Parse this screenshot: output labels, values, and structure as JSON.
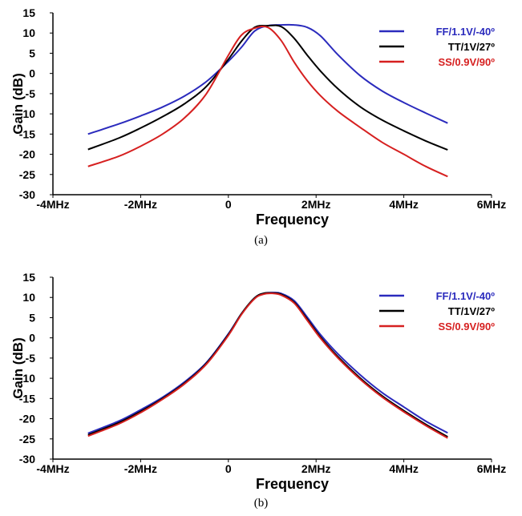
{
  "chart_data": [
    {
      "type": "line",
      "panel": "a",
      "caption": "(a)",
      "xlabel": "Frequency",
      "ylabel": "Gain (dB)",
      "xlim": [
        -4,
        6
      ],
      "ylim": [
        -30,
        15
      ],
      "x_tick_labels": [
        "-4MHz",
        "-2MHz",
        "0",
        "2MHz",
        "4MHz",
        "6MHz"
      ],
      "y_tick_labels": [
        "15",
        "10",
        "5",
        "0",
        "-5",
        "-10",
        "-15",
        "-20",
        "-25",
        "-30"
      ],
      "legend_position": "top-right",
      "series": [
        {
          "name": "FF/1.1V/-40º",
          "color": "#2b2bbd",
          "x": [
            -3.2,
            -2.5,
            -2.0,
            -1.5,
            -1.0,
            -0.5,
            0.0,
            0.3,
            0.6,
            0.9,
            1.2,
            1.5,
            1.8,
            2.1,
            2.5,
            3.0,
            3.5,
            4.0,
            4.5,
            5.0
          ],
          "y": [
            -15,
            -12.5,
            -10.5,
            -8.3,
            -5.6,
            -2,
            3,
            6.5,
            10.5,
            11.8,
            12,
            12,
            11.4,
            9.3,
            4.6,
            -0.5,
            -4.3,
            -7.2,
            -9.8,
            -12.3
          ]
        },
        {
          "name": "TT/1V/27º",
          "color": "#000000",
          "x": [
            -3.2,
            -2.5,
            -2.0,
            -1.5,
            -1.0,
            -0.5,
            0.0,
            0.3,
            0.6,
            0.9,
            1.2,
            1.5,
            1.8,
            2.1,
            2.5,
            3.0,
            3.5,
            4.0,
            4.5,
            5.0
          ],
          "y": [
            -18.8,
            -16,
            -13.5,
            -10.7,
            -7.5,
            -3.2,
            3.5,
            8,
            11.4,
            11.8,
            11.6,
            8.7,
            4.5,
            0.6,
            -3.8,
            -8.2,
            -11.5,
            -14.2,
            -16.7,
            -18.9
          ]
        },
        {
          "name": "SS/0.9V/90º",
          "color": "#d62020",
          "x": [
            -3.2,
            -2.5,
            -2.0,
            -1.5,
            -1.0,
            -0.5,
            0.0,
            0.3,
            0.6,
            0.9,
            1.2,
            1.5,
            1.8,
            2.1,
            2.5,
            3.0,
            3.5,
            4.0,
            4.5,
            5.0
          ],
          "y": [
            -23,
            -20.5,
            -18,
            -15,
            -11,
            -5,
            4.5,
            9.5,
            11.2,
            11.4,
            8.2,
            2.8,
            -1.8,
            -5.5,
            -9.4,
            -13.3,
            -17,
            -20,
            -23,
            -25.5
          ]
        }
      ]
    },
    {
      "type": "line",
      "panel": "b",
      "caption": "(b)",
      "xlabel": "Frequency",
      "ylabel": "Gain (dB)",
      "xlim": [
        -4,
        6
      ],
      "ylim": [
        -30,
        15
      ],
      "x_tick_labels": [
        "-4MHz",
        "-2MHz",
        "0",
        "2MHz",
        "4MHz",
        "6MHz"
      ],
      "y_tick_labels": [
        "15",
        "10",
        "5",
        "0",
        "-5",
        "-10",
        "-15",
        "-20",
        "-25",
        "-30"
      ],
      "legend_position": "top-right",
      "series": [
        {
          "name": "FF/1.1V/-40º",
          "color": "#2b2bbd",
          "x": [
            -3.2,
            -2.5,
            -2.0,
            -1.5,
            -1.0,
            -0.5,
            0.0,
            0.3,
            0.6,
            0.8,
            1.0,
            1.2,
            1.5,
            1.8,
            2.1,
            2.5,
            3.0,
            3.5,
            4.0,
            4.5,
            5.0
          ],
          "y": [
            -23.6,
            -20.6,
            -17.8,
            -14.7,
            -10.9,
            -6.1,
            1,
            6,
            9.9,
            11,
            11.2,
            11,
            9.2,
            5.1,
            0.8,
            -4,
            -9.1,
            -13.5,
            -17.1,
            -20.6,
            -23.5
          ]
        },
        {
          "name": "TT/1V/27º",
          "color": "#000000",
          "x": [
            -3.2,
            -2.5,
            -2.0,
            -1.5,
            -1.0,
            -0.5,
            0.0,
            0.3,
            0.6,
            0.8,
            1.0,
            1.2,
            1.5,
            1.8,
            2.1,
            2.5,
            3.0,
            3.5,
            4.0,
            4.5,
            5.0
          ],
          "y": [
            -24,
            -21,
            -18.2,
            -15,
            -11.2,
            -6.3,
            0.8,
            6,
            9.9,
            11,
            11.1,
            10.8,
            8.8,
            4.6,
            0.2,
            -4.7,
            -9.9,
            -14.3,
            -18,
            -21.4,
            -24.5
          ]
        },
        {
          "name": "SS/0.9V/90º",
          "color": "#d62020",
          "x": [
            -3.2,
            -2.5,
            -2.0,
            -1.5,
            -1.0,
            -0.5,
            0.0,
            0.3,
            0.6,
            0.8,
            1.0,
            1.2,
            1.5,
            1.8,
            2.1,
            2.5,
            3.0,
            3.5,
            4.0,
            4.5,
            5.0
          ],
          "y": [
            -24.3,
            -21.3,
            -18.5,
            -15.2,
            -11.4,
            -6.5,
            0.6,
            5.8,
            9.7,
            10.8,
            11,
            10.6,
            8.6,
            4.3,
            -0.1,
            -5,
            -10.2,
            -14.6,
            -18.3,
            -21.7,
            -24.8
          ]
        }
      ]
    }
  ]
}
